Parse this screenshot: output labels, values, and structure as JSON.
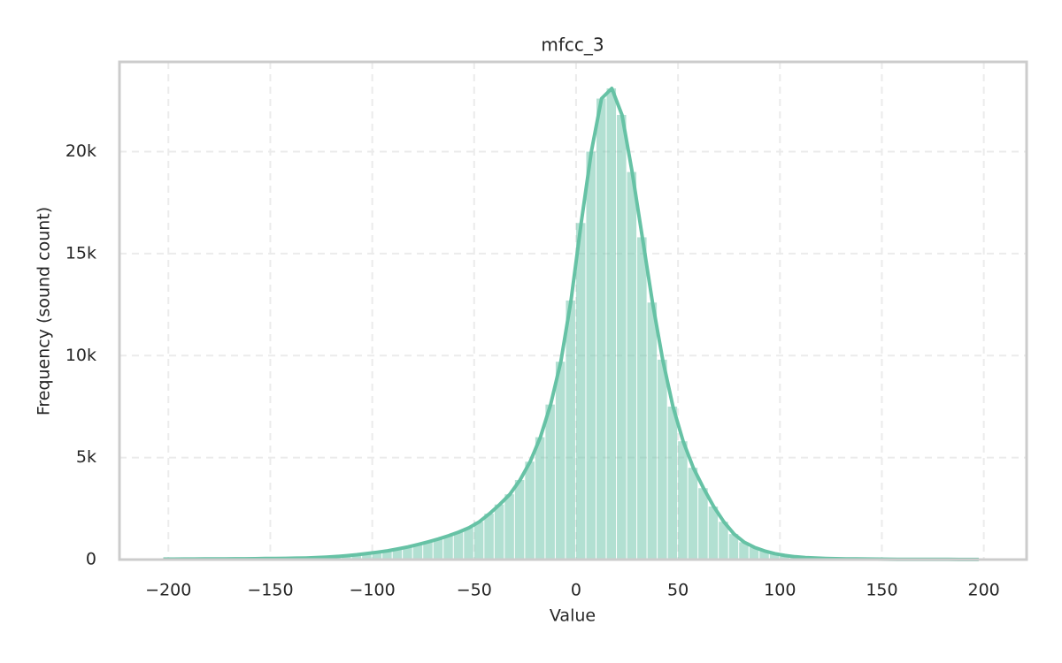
{
  "chart_data": {
    "type": "histogram",
    "title": "mfcc_3",
    "x_label": "Value",
    "y_label": "Frequency (sound count)",
    "bins": [
      -205,
      -200,
      -195,
      -190,
      -185,
      -180,
      -175,
      -170,
      -165,
      -160,
      -155,
      -150,
      -145,
      -140,
      -135,
      -130,
      -125,
      -120,
      -115,
      -110,
      -105,
      -100,
      -95,
      -90,
      -85,
      -80,
      -75,
      -70,
      -65,
      -60,
      -55,
      -50,
      -45,
      -40,
      -35,
      -30,
      -25,
      -20,
      -15,
      -10,
      -5,
      0,
      5,
      10,
      15,
      20,
      25,
      30,
      35,
      40,
      45,
      50,
      55,
      60,
      65,
      70,
      75,
      80,
      85,
      90,
      95,
      100,
      105,
      110,
      115,
      120,
      125,
      130,
      135,
      140,
      145,
      150,
      155,
      160,
      165,
      170,
      175,
      180,
      185,
      190,
      195,
      200
    ],
    "counts": [
      20,
      20,
      25,
      25,
      30,
      30,
      35,
      40,
      40,
      45,
      50,
      55,
      60,
      70,
      80,
      95,
      120,
      150,
      190,
      240,
      300,
      360,
      430,
      520,
      620,
      740,
      870,
      1010,
      1170,
      1350,
      1560,
      1850,
      2250,
      2700,
      3200,
      3900,
      4800,
      6000,
      7600,
      9700,
      12700,
      16500,
      20000,
      22600,
      23100,
      21800,
      19000,
      15800,
      12600,
      9800,
      7500,
      5800,
      4500,
      3500,
      2600,
      1850,
      1250,
      850,
      600,
      420,
      290,
      200,
      140,
      100,
      75,
      55,
      45,
      35,
      30,
      25,
      20,
      18,
      15,
      12,
      10,
      9,
      8,
      7,
      6,
      5,
      5
    ],
    "color": "#66c2a5",
    "bar_opacity": 0.5,
    "kde_line": true,
    "xlim": [
      -224,
      221
    ],
    "ylim": [
      0,
      24400
    ],
    "xticks": [
      {
        "value": -200,
        "label": "−200"
      },
      {
        "value": -150,
        "label": "−150"
      },
      {
        "value": -100,
        "label": "−100"
      },
      {
        "value": -50,
        "label": "−50"
      },
      0,
      50,
      100,
      150,
      200
    ],
    "yticks": [
      0,
      {
        "value": 5000,
        "label": "5k"
      },
      {
        "value": 10000,
        "label": "10k"
      },
      {
        "value": 15000,
        "label": "15k"
      },
      {
        "value": 20000,
        "label": "20k"
      }
    ],
    "grid": true
  }
}
